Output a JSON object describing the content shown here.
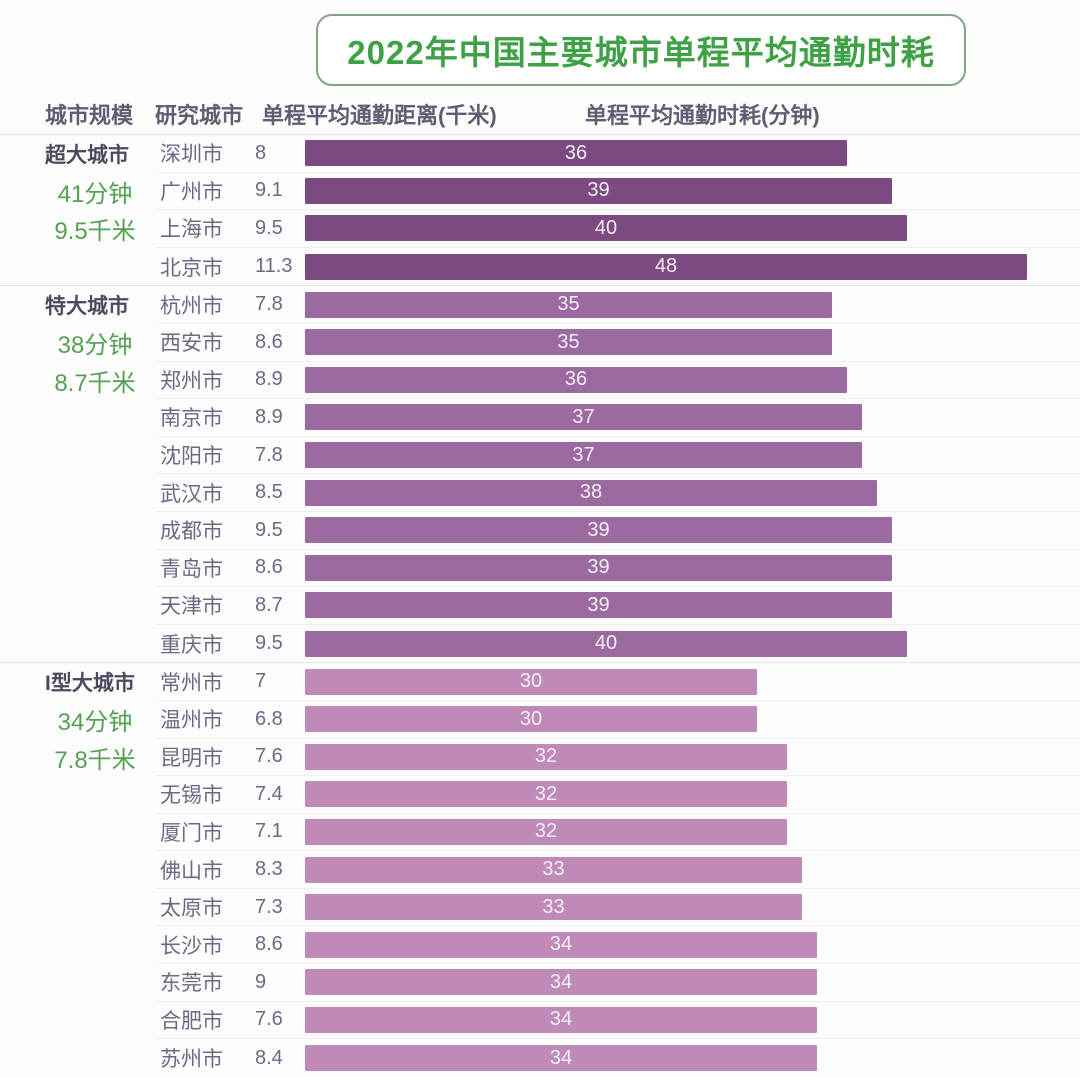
{
  "title": "2022年中国主要城市单程平均通勤时耗",
  "headers": {
    "scale": "城市规模",
    "city": "研究城市",
    "distance": "单程平均通勤距离(千米)",
    "time": "单程平均通勤时耗(分钟)"
  },
  "colors": {
    "title_green": "#3fa146",
    "stat_green": "#55a152",
    "header_text": "#5e5e73",
    "body_text": "#6f6885",
    "bar_mega": "#7b4a80",
    "bar_super": "#9a6aa1",
    "bar_large": "#c08ab8"
  },
  "chart_data": {
    "type": "bar",
    "title": "2022年中国主要城市单程平均通勤时耗",
    "xlabel": "单程平均通勤时耗(分钟)",
    "ylabel": "研究城市",
    "xlim": [
      0,
      48
    ],
    "value_unit": "分钟",
    "distance_unit": "千米",
    "legend": "none",
    "grid": "off",
    "groups": [
      {
        "scale": "超大城市",
        "avg_time": "41分钟",
        "avg_distance": "9.5千米",
        "bar_color": "#7b4a80",
        "cities": [
          {
            "name": "深圳市",
            "distance": "8",
            "time": 36
          },
          {
            "name": "广州市",
            "distance": "9.1",
            "time": 39
          },
          {
            "name": "上海市",
            "distance": "9.5",
            "time": 40
          },
          {
            "name": "北京市",
            "distance": "11.3",
            "time": 48
          }
        ]
      },
      {
        "scale": "特大城市",
        "avg_time": "38分钟",
        "avg_distance": "8.7千米",
        "bar_color": "#9a6aa1",
        "cities": [
          {
            "name": "杭州市",
            "distance": "7.8",
            "time": 35
          },
          {
            "name": "西安市",
            "distance": "8.6",
            "time": 35
          },
          {
            "name": "郑州市",
            "distance": "8.9",
            "time": 36
          },
          {
            "name": "南京市",
            "distance": "8.9",
            "time": 37
          },
          {
            "name": "沈阳市",
            "distance": "7.8",
            "time": 37
          },
          {
            "name": "武汉市",
            "distance": "8.5",
            "time": 38
          },
          {
            "name": "成都市",
            "distance": "9.5",
            "time": 39
          },
          {
            "name": "青岛市",
            "distance": "8.6",
            "time": 39
          },
          {
            "name": "天津市",
            "distance": "8.7",
            "time": 39
          },
          {
            "name": "重庆市",
            "distance": "9.5",
            "time": 40
          }
        ]
      },
      {
        "scale": "I型大城市",
        "avg_time": "34分钟",
        "avg_distance": "7.8千米",
        "bar_color": "#c08ab8",
        "cities": [
          {
            "name": "常州市",
            "distance": "7",
            "time": 30
          },
          {
            "name": "温州市",
            "distance": "6.8",
            "time": 30
          },
          {
            "name": "昆明市",
            "distance": "7.6",
            "time": 32
          },
          {
            "name": "无锡市",
            "distance": "7.4",
            "time": 32
          },
          {
            "name": "厦门市",
            "distance": "7.1",
            "time": 32
          },
          {
            "name": "佛山市",
            "distance": "8.3",
            "time": 33
          },
          {
            "name": "太原市",
            "distance": "7.3",
            "time": 33
          },
          {
            "name": "长沙市",
            "distance": "8.6",
            "time": 34
          },
          {
            "name": "东莞市",
            "distance": "9",
            "time": 34
          },
          {
            "name": "合肥市",
            "distance": "7.6",
            "time": 34
          },
          {
            "name": "苏州市",
            "distance": "8.4",
            "time": 34
          }
        ]
      }
    ]
  }
}
